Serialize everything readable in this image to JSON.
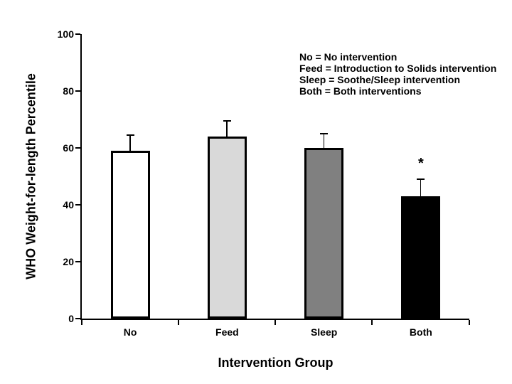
{
  "chart_data": {
    "type": "bar",
    "title": "",
    "xlabel": "Intervention Group",
    "ylabel": "WHO Weight-for-length Percentile",
    "categories": [
      "No",
      "Feed",
      "Sleep",
      "Both"
    ],
    "values": [
      59,
      64,
      60,
      43
    ],
    "errors_upper": [
      5.5,
      5.5,
      5,
      6
    ],
    "bar_fill_colors": [
      "#FFFFFF",
      "#D9D9D9",
      "#808080",
      "#000000"
    ],
    "bar_border_color": "#000000",
    "ylim": [
      0,
      100
    ],
    "yticks": [
      0,
      20,
      40,
      60,
      80,
      100
    ],
    "grid": false,
    "legend_position": "top-right-inside",
    "legend_lines": [
      "No = No intervention",
      "Feed = Introduction to Solids intervention",
      "Sleep = Soothe/Sleep intervention",
      "Both = Both interventions"
    ],
    "annotations": [
      {
        "text": "*",
        "category_index": 3,
        "y": 52
      }
    ]
  }
}
